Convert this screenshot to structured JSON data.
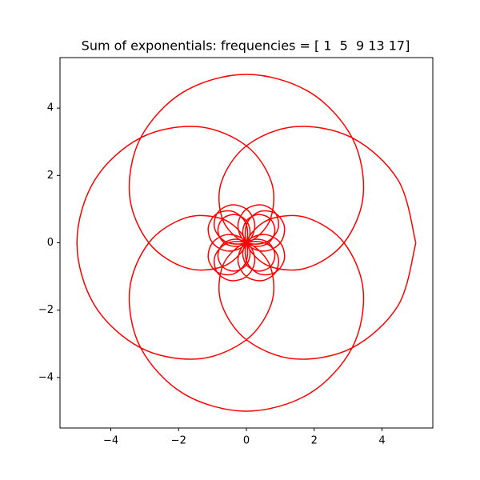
{
  "chart_data": {
    "type": "line",
    "title": "Sum of exponentials: frequencies = [ 1  5  9 13 17]",
    "xlim": [
      -5.5,
      5.5
    ],
    "ylim": [
      -5.5,
      5.5
    ],
    "xticks": [
      {
        "value": -4,
        "label": "−4"
      },
      {
        "value": -2,
        "label": "−2"
      },
      0,
      2,
      4
    ],
    "yticks": [
      {
        "value": -4,
        "label": "−4"
      },
      {
        "value": -2,
        "label": "−2"
      },
      0,
      2,
      4
    ],
    "grid": false,
    "series": [
      {
        "color": "#ff0000",
        "x": [
          5,
          4.4799,
          3.1194,
          1.4282,
          0,
          -0.7418,
          -0.7071,
          -0.1405,
          0.5322,
          0.9239,
          0.8674,
          0.4653,
          0,
          -0.2422,
          -0.1307,
          0.2476,
          0.6526,
          0.8405,
          0.7071,
          0.3482,
          0,
          -0.1024,
          0.1307,
          0.5847,
          1,
          1.1235,
          0.8674,
          0.3827,
          0,
          0.0581,
          0.7071,
          1.7907,
          2.8792,
          3.448,
          3.1194,
          1.8556,
          0,
          -1.8556,
          -3.1194,
          -3.448,
          -2.8792,
          -1.7907,
          -0.7071,
          -0.0581,
          0,
          -0.3827,
          -0.8674,
          -1.1235,
          -1,
          -0.5847,
          -0.1307,
          0.1024,
          0,
          -0.3482,
          -0.7071,
          -0.8405,
          -0.6526,
          -0.2476,
          0.1307,
          0.2422,
          0,
          -0.4653,
          -0.8674,
          -0.9239,
          -0.5322,
          0.1405,
          0.7071,
          0.7418,
          0,
          -1.4282,
          -3.1194,
          -4.4799,
          -5,
          -4.4799,
          -3.1194,
          -1.4282,
          0,
          0.7418,
          0.7071,
          0.1405,
          -0.5322,
          -0.9239,
          -0.8674,
          -0.4653,
          0,
          0.2422,
          0.1307,
          -0.2476,
          -0.6526,
          -0.8405,
          -0.7071,
          -0.3482,
          0,
          0.1024,
          -0.1307,
          -0.5847,
          -1,
          -1.1235,
          -0.8674,
          -0.3827,
          0,
          -0.0581,
          -0.7071,
          -1.7907,
          -2.8792,
          -3.448,
          -3.1194,
          -1.8556,
          0,
          1.8556,
          3.1194,
          3.448,
          2.8792,
          1.7907,
          0.7071,
          0.0581,
          0,
          0.3827,
          0.8674,
          1.1235,
          1,
          0.5847,
          0.1307,
          -0.1024,
          0,
          0.3482,
          0.7071,
          0.8405,
          0.6526,
          0.2476,
          -0.1307,
          -0.2422,
          0,
          0.4653,
          0.8674,
          0.9239,
          0.5322,
          -0.1405,
          -0.7071,
          -0.7418,
          0,
          1.4282,
          3.1194,
          4.4799,
          5
        ],
        "y": [
          0,
          1.8556,
          3.1194,
          3.448,
          2.8792,
          1.7907,
          0.7071,
          0.0581,
          0,
          0.3827,
          0.8674,
          1.1235,
          1,
          0.5847,
          0.1307,
          -0.1024,
          0,
          0.3482,
          0.7071,
          0.8405,
          0.6526,
          0.2476,
          -0.1307,
          -0.2422,
          0,
          0.4653,
          0.8674,
          0.9239,
          0.5322,
          -0.1405,
          -0.7071,
          -0.7418,
          0,
          1.4282,
          3.1194,
          4.4799,
          5,
          4.4799,
          3.1194,
          1.4282,
          0,
          -0.7418,
          -0.7071,
          -0.1405,
          0.5322,
          0.9239,
          0.8674,
          0.4653,
          0,
          -0.2422,
          -0.1307,
          0.2476,
          0.6526,
          0.8405,
          0.7071,
          0.3482,
          0,
          -0.1024,
          0.1307,
          0.5847,
          1,
          1.1235,
          0.8674,
          0.3827,
          0,
          0.0581,
          0.7071,
          1.7907,
          2.8792,
          3.448,
          3.1194,
          1.8556,
          0,
          -1.8556,
          -3.1194,
          -3.448,
          -2.8792,
          -1.7907,
          -0.7071,
          -0.0581,
          0,
          -0.3827,
          -0.8674,
          -1.1235,
          -1,
          -0.5847,
          -0.1307,
          0.1024,
          0,
          -0.3482,
          -0.7071,
          -0.8405,
          -0.6526,
          -0.2476,
          0.1307,
          0.2422,
          0,
          -0.4653,
          -0.8674,
          -0.9239,
          -0.5322,
          0.1405,
          0.7071,
          0.7418,
          0,
          -1.4282,
          -3.1194,
          -4.4799,
          -5,
          -4.4799,
          -3.1194,
          -1.4282,
          0,
          0.7418,
          0.7071,
          0.1405,
          -0.5322,
          -0.9239,
          -0.8674,
          -0.4653,
          0,
          0.2422,
          0.1307,
          -0.2476,
          -0.6526,
          -0.8405,
          -0.7071,
          -0.3482,
          0,
          0.1024,
          -0.1307,
          -0.5847,
          -1,
          -1.1235,
          -0.8674,
          -0.3827,
          0,
          -0.0581,
          -0.7071,
          -1.7907,
          -2.8792,
          -3.448,
          -3.1194,
          -1.8556,
          0
        ]
      }
    ]
  }
}
